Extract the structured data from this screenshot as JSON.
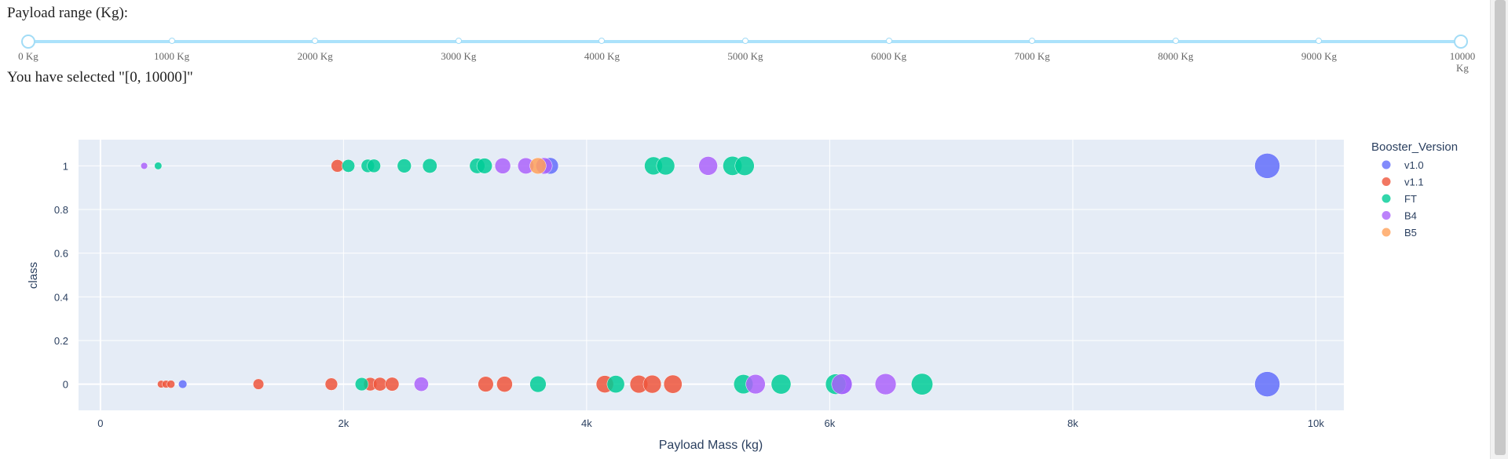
{
  "slider": {
    "label": "Payload range (Kg):",
    "marks": [
      "0 Kg",
      "1000 Kg",
      "2000 Kg",
      "3000 Kg",
      "4000 Kg",
      "5000 Kg",
      "6000 Kg",
      "7000 Kg",
      "8000 Kg",
      "9000 Kg",
      "10000 Kg"
    ],
    "range": [
      0,
      10000
    ],
    "selected_text": "You have selected \"[0, 10000]\""
  },
  "chart_data": {
    "type": "scatter",
    "xlabel": "Payload Mass (kg)",
    "ylabel": "class",
    "x_ticks": [
      "0",
      "2k",
      "4k",
      "6k",
      "8k",
      "10k"
    ],
    "y_ticks": [
      "0",
      "0.2",
      "0.4",
      "0.6",
      "0.8",
      "1"
    ],
    "xlim": [
      -180,
      10230
    ],
    "ylim": [
      -0.12,
      1.12
    ],
    "legend_title": "Booster_Version",
    "legend_position": "right",
    "colors": {
      "v1.0": "#636efa",
      "v1.1": "#ef553b",
      "FT": "#00cc96",
      "B4": "#ab63fa",
      "B5": "#ffa15a"
    },
    "series": [
      {
        "name": "v1.0",
        "points": [
          [
            677,
            0
          ],
          [
            3700,
            1
          ],
          [
            6100,
            0
          ],
          [
            9600,
            1
          ],
          [
            9600,
            0
          ]
        ]
      },
      {
        "name": "v1.1",
        "points": [
          [
            500,
            0
          ],
          [
            540,
            0
          ],
          [
            580,
            0
          ],
          [
            1300,
            0
          ],
          [
            1900,
            0
          ],
          [
            1950,
            1
          ],
          [
            2220,
            0
          ],
          [
            2300,
            0
          ],
          [
            2400,
            0
          ],
          [
            3170,
            0
          ],
          [
            3325,
            0
          ],
          [
            4150,
            0
          ],
          [
            4430,
            0
          ],
          [
            4540,
            0
          ],
          [
            4710,
            0
          ]
        ]
      },
      {
        "name": "FT",
        "points": [
          [
            475,
            1
          ],
          [
            2040,
            1
          ],
          [
            2200,
            1
          ],
          [
            2250,
            1
          ],
          [
            2500,
            1
          ],
          [
            2710,
            1
          ],
          [
            3100,
            1
          ],
          [
            3160,
            1
          ],
          [
            4550,
            1
          ],
          [
            4650,
            1
          ],
          [
            5200,
            1
          ],
          [
            5300,
            1
          ],
          [
            2150,
            0
          ],
          [
            3600,
            0
          ],
          [
            4240,
            0
          ],
          [
            5290,
            0
          ],
          [
            5600,
            0
          ],
          [
            6050,
            0
          ],
          [
            6760,
            0
          ]
        ]
      },
      {
        "name": "B4",
        "points": [
          [
            360,
            1
          ],
          [
            3310,
            1
          ],
          [
            3500,
            1
          ],
          [
            3650,
            1
          ],
          [
            5000,
            1
          ],
          [
            2640,
            0
          ],
          [
            5390,
            0
          ],
          [
            6100,
            0
          ],
          [
            6460,
            0
          ]
        ]
      },
      {
        "name": "B5",
        "points": [
          [
            3600,
            1
          ]
        ]
      }
    ]
  }
}
